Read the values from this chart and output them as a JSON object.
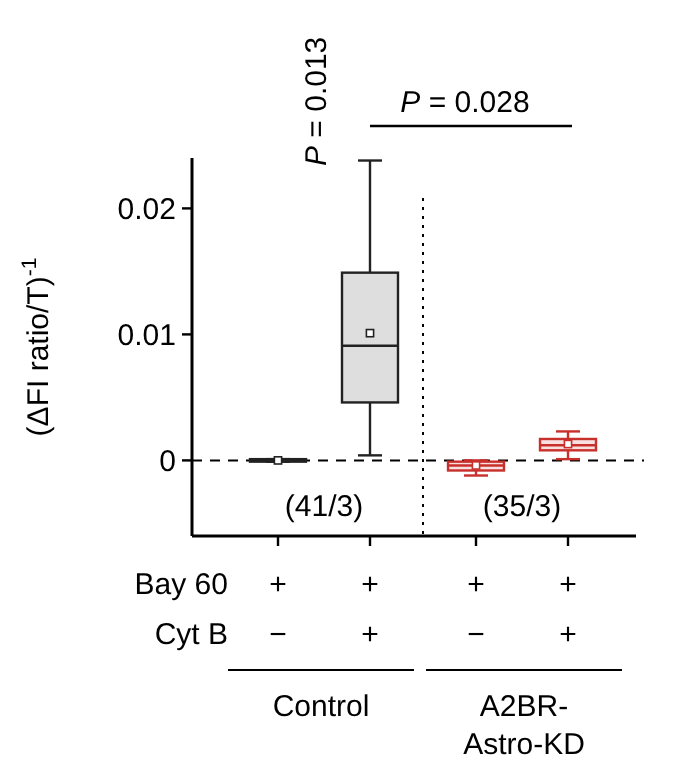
{
  "chart_data": {
    "type": "box",
    "ylabel": "(ΔFI ratio/T)$^{-1}$",
    "categories": [
      null,
      null,
      null,
      null
    ],
    "series": [
      {
        "color": "#222222",
        "boxes": [
          {
            "low": -0.0001,
            "q1": -0.0001,
            "median": 0,
            "q3": 0.0001,
            "high": 0.0001,
            "mean": 0
          },
          {
            "low": 0.0004,
            "q1": 0.0046,
            "median": 0.0091,
            "q3": 0.0149,
            "high": 0.0238,
            "mean": 0.0101
          },
          null,
          null
        ]
      },
      {
        "color": "#c8302c",
        "boxes": [
          null,
          null,
          {
            "low": -0.0012,
            "q1": -0.0008,
            "median": -0.0004,
            "q3": -0.0001,
            "high": 0,
            "mean": -0.0004
          },
          {
            "low": 0.0001,
            "q1": 0.0008,
            "median": 0.0012,
            "q3": 0.0017,
            "high": 0.0023,
            "mean": 0.0013
          }
        ]
      }
    ],
    "ylim": [
      -0.006,
      0.024
    ],
    "yticks": [
      0,
      0.01,
      0.02
    ],
    "ref_lines": [
      {
        "axis": "y",
        "value": 0,
        "line_style": "dashed"
      }
    ],
    "annotations": [
      "P = 0.013",
      "P = 0.028",
      "(41/3)",
      "(35/3)",
      "Bay 60",
      "+",
      "+",
      "+",
      "+",
      "Cyt B",
      "−",
      "+",
      "−",
      "+",
      "Control",
      "A2BR-\nAstro-KD"
    ]
  }
}
